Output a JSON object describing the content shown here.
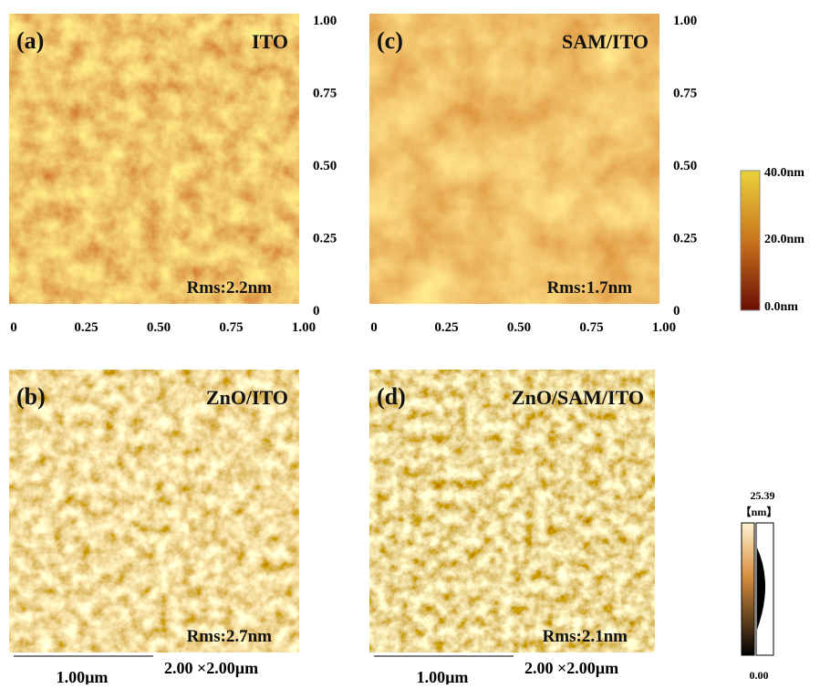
{
  "panels": [
    {
      "label": "(a)",
      "name": "ITO",
      "rms": "Rms:2.2nm",
      "xticks": [
        "0",
        "0.25",
        "0.50",
        "0.75",
        "1.00"
      ],
      "yticks": [
        "0",
        "0.25",
        "0.50",
        "0.75",
        "1.00"
      ]
    },
    {
      "label": "(c)",
      "name": "SAM/ITO",
      "rms": "Rms:1.7nm",
      "xticks": [
        "0",
        "0.25",
        "0.50",
        "0.75",
        "1.00"
      ],
      "yticks": [
        "0",
        "0.25",
        "0.50",
        "0.75",
        "1.00"
      ]
    },
    {
      "label": "(b)",
      "name": "ZnO/ITO",
      "rms": "Rms:2.7nm",
      "scale_bar": "1.00µm",
      "size": "2.00 ×2.00µm"
    },
    {
      "label": "(d)",
      "name": "ZnO/SAM/ITO",
      "rms": "Rms:2.1nm",
      "scale_bar": "1.00µm",
      "size": "2.00 ×2.00µm"
    }
  ],
  "colorbar_top": {
    "labels": [
      "40.0nm",
      "20.0nm",
      "0.0nm"
    ]
  },
  "colorbar_bottom": {
    "max": "25.39",
    "unit": "【nm】",
    "min": "0.00"
  }
}
